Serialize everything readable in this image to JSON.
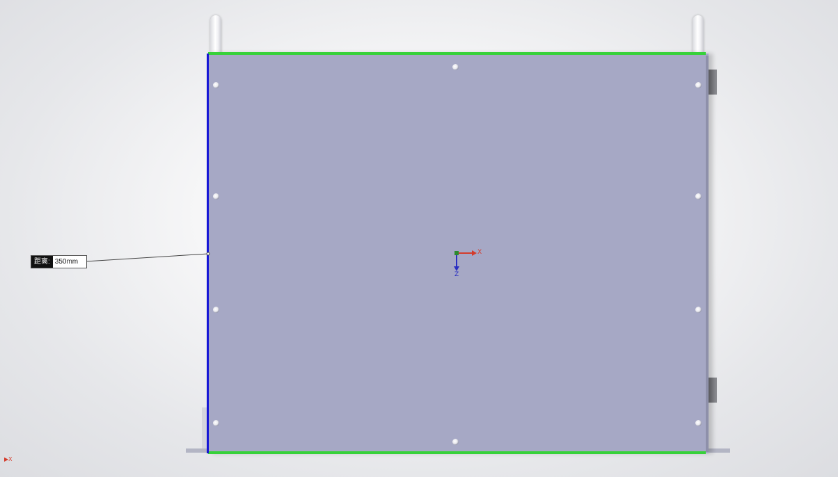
{
  "dimension": {
    "label": "距离:",
    "value": "350mm"
  },
  "triad": {
    "x_axis": "X",
    "z_axis": "Z"
  },
  "corner_triad": {
    "axis": "X"
  },
  "colors": {
    "plate": "#a6a8c5",
    "edge_green": "#37d13a",
    "edge_blue": "#1515d6",
    "axis_x": "#d43b2b",
    "axis_z": "#2a2fc2",
    "origin": "#2c8a2f"
  },
  "icons": [
    "coordinate-triad-icon",
    "origin-point-icon",
    "mini-axis-icon"
  ]
}
